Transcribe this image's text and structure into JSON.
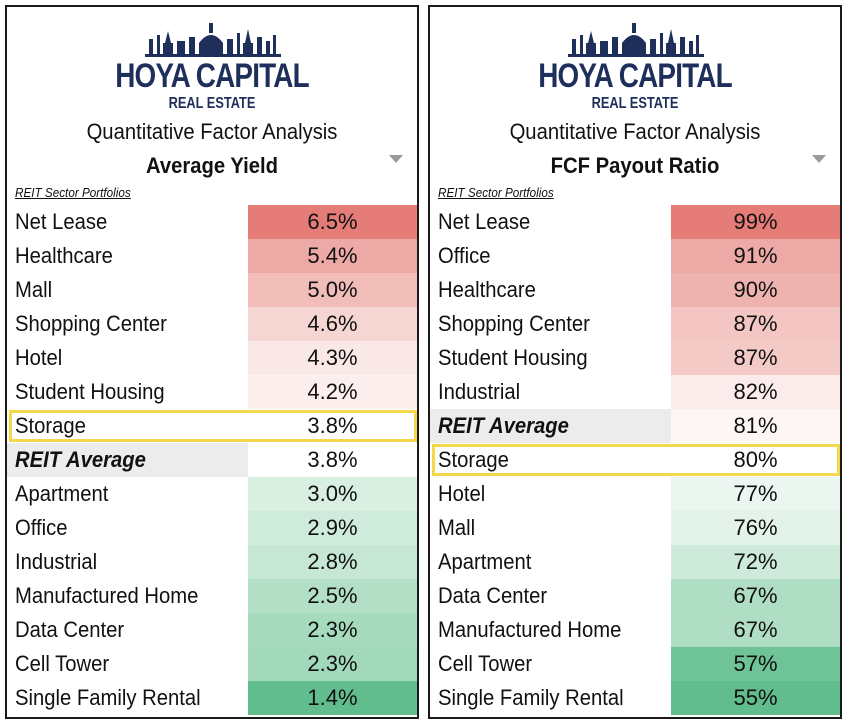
{
  "brand": {
    "line1": "HOYA CAPITAL",
    "line2": "REAL ESTATE"
  },
  "colors": {
    "brand_navy": "#1f2f5c",
    "highlight": "#f2d84a",
    "high_red": "#e57373",
    "low_green": "#57bb8a",
    "avg_gray": "#ececec"
  },
  "left": {
    "subtitle": "Quantitative Factor Analysis",
    "metric": "Average Yield",
    "sector_label": "REIT Sector Portfolios",
    "rows": [
      {
        "name": "Net Lease",
        "value": "6.5%",
        "color": "#e57c77"
      },
      {
        "name": "Healthcare",
        "value": "5.4%",
        "color": "#eda9a5"
      },
      {
        "name": "Mall",
        "value": "5.0%",
        "color": "#f0bdb9"
      },
      {
        "name": "Shopping Center",
        "value": "4.6%",
        "color": "#f6d6d3"
      },
      {
        "name": "Hotel",
        "value": "4.3%",
        "color": "#fae8e6"
      },
      {
        "name": "Student Housing",
        "value": "4.2%",
        "color": "#fcefee"
      },
      {
        "name": "Storage",
        "value": "3.8%",
        "color": "#ffffff"
      },
      {
        "name": "REIT Average",
        "value": "3.8%",
        "color": "#ffffff",
        "avg": true
      },
      {
        "name": "Apartment",
        "value": "3.0%",
        "color": "#d8efe2"
      },
      {
        "name": "Office",
        "value": "2.9%",
        "color": "#cfebdb"
      },
      {
        "name": "Industrial",
        "value": "2.8%",
        "color": "#c6e7d4"
      },
      {
        "name": "Manufactured Home",
        "value": "2.5%",
        "color": "#b2dfc6"
      },
      {
        "name": "Data Center",
        "value": "2.3%",
        "color": "#a7dbbe"
      },
      {
        "name": "Cell Tower",
        "value": "2.3%",
        "color": "#a3d9bb"
      },
      {
        "name": "Single Family Rental",
        "value": "1.4%",
        "color": "#62bd8e"
      }
    ],
    "highlight_index": 6
  },
  "right": {
    "subtitle": "Quantitative Factor Analysis",
    "metric": "FCF Payout Ratio",
    "sector_label": "REIT Sector Portfolios",
    "rows": [
      {
        "name": "Net Lease",
        "value": "99%",
        "color": "#e57c77"
      },
      {
        "name": "Office",
        "value": "91%",
        "color": "#eda9a5"
      },
      {
        "name": "Healthcare",
        "value": "90%",
        "color": "#efb3af"
      },
      {
        "name": "Shopping Center",
        "value": "87%",
        "color": "#f3c6c3"
      },
      {
        "name": "Student Housing",
        "value": "87%",
        "color": "#f4cac7"
      },
      {
        "name": "Industrial",
        "value": "82%",
        "color": "#fbeceb"
      },
      {
        "name": "REIT Average",
        "value": "81%",
        "color": "#fdf6f5",
        "avg": true
      },
      {
        "name": "Storage",
        "value": "80%",
        "color": "#ffffff"
      },
      {
        "name": "Hotel",
        "value": "77%",
        "color": "#eaf6ef"
      },
      {
        "name": "Mall",
        "value": "76%",
        "color": "#e3f3ea"
      },
      {
        "name": "Apartment",
        "value": "72%",
        "color": "#cdeada"
      },
      {
        "name": "Data Center",
        "value": "67%",
        "color": "#b0dec4"
      },
      {
        "name": "Manufactured Home",
        "value": "67%",
        "color": "#b0dec4"
      },
      {
        "name": "Cell Tower",
        "value": "57%",
        "color": "#6ec397"
      },
      {
        "name": "Single Family Rental",
        "value": "55%",
        "color": "#62bd8e"
      }
    ],
    "highlight_index": 7
  }
}
